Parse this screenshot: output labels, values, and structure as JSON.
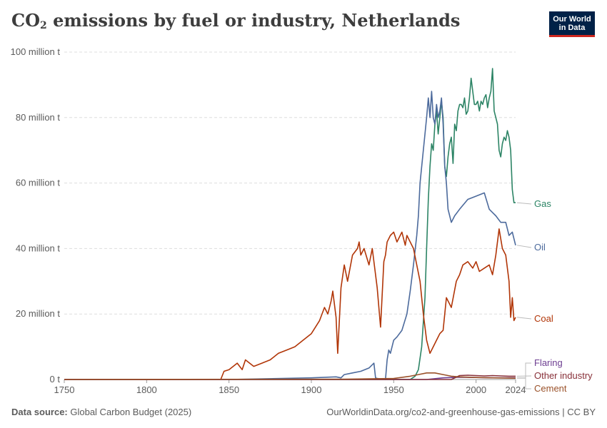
{
  "title": {
    "main": "CO",
    "sub": "2",
    "rest": " emissions by fuel or industry, Netherlands"
  },
  "logo": {
    "line1": "Our World",
    "line2": "in Data"
  },
  "footer": {
    "source_label": "Data source:",
    "source_value": " Global Carbon Budget (2025)",
    "url_license": "OurWorldinData.org/co2-and-greenhouse-gas-emissions | CC BY"
  },
  "chart_data": {
    "type": "line",
    "title": "CO2 emissions by fuel or industry, Netherlands",
    "xlabel": "",
    "ylabel": "",
    "xlim": [
      1750,
      2024
    ],
    "ylim": [
      0,
      100
    ],
    "y_unit": "million t",
    "x_ticks": [
      1750,
      1800,
      1850,
      1900,
      1950,
      2000,
      2024
    ],
    "y_ticks": [
      0,
      20,
      40,
      60,
      80,
      100
    ],
    "y_tick_labels": [
      "0 t",
      "20 million t",
      "40 million t",
      "60 million t",
      "80 million t",
      "100 million t"
    ],
    "grid": true,
    "legend": "inline-right",
    "series": [
      {
        "name": "Gas",
        "color": "#2c8465",
        "x": [
          1750,
          1960,
          1963,
          1965,
          1967,
          1969,
          1970,
          1971,
          1972,
          1973,
          1974,
          1975,
          1976,
          1977,
          1978,
          1979,
          1980,
          1981,
          1982,
          1983,
          1984,
          1985,
          1986,
          1987,
          1988,
          1989,
          1990,
          1991,
          1992,
          1993,
          1994,
          1995,
          1996,
          1997,
          1998,
          1999,
          2000,
          2001,
          2002,
          2003,
          2004,
          2005,
          2006,
          2007,
          2008,
          2009,
          2010,
          2011,
          2012,
          2013,
          2014,
          2015,
          2016,
          2017,
          2018,
          2019,
          2020,
          2021,
          2022,
          2023,
          2024
        ],
        "y": [
          0,
          0,
          1,
          3,
          10,
          25,
          40,
          55,
          65,
          72,
          70,
          78,
          82,
          75,
          80,
          85,
          80,
          65,
          62,
          68,
          72,
          74,
          66,
          78,
          76,
          82,
          84,
          84,
          83,
          86,
          81,
          82,
          86,
          92,
          88,
          84,
          84,
          85,
          82,
          85,
          84,
          86,
          87,
          83,
          86,
          88,
          95,
          82,
          80,
          78,
          70,
          68,
          72,
          74,
          73,
          76,
          74,
          70,
          58,
          54,
          54
        ]
      },
      {
        "name": "Oil",
        "color": "#4c6a9c",
        "x": [
          1750,
          1850,
          1900,
          1915,
          1918,
          1920,
          1925,
          1930,
          1935,
          1938,
          1939,
          1940,
          1944,
          1945,
          1946,
          1947,
          1948,
          1950,
          1952,
          1955,
          1958,
          1960,
          1962,
          1964,
          1965,
          1966,
          1967,
          1968,
          1969,
          1970,
          1971,
          1972,
          1973,
          1974,
          1975,
          1976,
          1977,
          1978,
          1979,
          1980,
          1981,
          1982,
          1983,
          1985,
          1987,
          1990,
          1995,
          2000,
          2005,
          2008,
          2010,
          2012,
          2015,
          2018,
          2020,
          2022,
          2024
        ],
        "y": [
          0,
          0,
          0.5,
          0.8,
          0.5,
          1.5,
          2,
          2.5,
          3.5,
          5,
          0.5,
          0.3,
          0.1,
          0,
          6,
          9,
          8,
          12,
          13,
          15,
          20,
          27,
          35,
          44,
          50,
          60,
          65,
          70,
          75,
          80,
          86,
          80,
          88,
          80,
          78,
          84,
          80,
          82,
          86,
          78,
          65,
          60,
          52,
          48,
          50,
          52,
          55,
          56,
          57,
          52,
          51,
          50,
          48,
          48,
          44,
          45,
          41
        ]
      },
      {
        "name": "Coal",
        "color": "#b13507",
        "x": [
          1750,
          1845,
          1847,
          1850,
          1855,
          1858,
          1860,
          1865,
          1870,
          1875,
          1880,
          1885,
          1890,
          1895,
          1900,
          1905,
          1908,
          1910,
          1912,
          1913,
          1915,
          1916,
          1918,
          1920,
          1922,
          1925,
          1928,
          1929,
          1930,
          1932,
          1935,
          1937,
          1938,
          1940,
          1942,
          1944,
          1945,
          1946,
          1948,
          1950,
          1952,
          1955,
          1957,
          1958,
          1960,
          1962,
          1964,
          1966,
          1968,
          1970,
          1972,
          1974,
          1976,
          1978,
          1980,
          1982,
          1985,
          1988,
          1990,
          1992,
          1995,
          1998,
          2000,
          2002,
          2005,
          2008,
          2010,
          2012,
          2014,
          2016,
          2018,
          2020,
          2021,
          2022,
          2023,
          2024
        ],
        "y": [
          0,
          0,
          2.5,
          3,
          5,
          3,
          6,
          4,
          5,
          6,
          8,
          9,
          10,
          12,
          14,
          18,
          22,
          20,
          24,
          27,
          19,
          8,
          28,
          35,
          30,
          38,
          40,
          42,
          38,
          40,
          35,
          40,
          36,
          28,
          16,
          36,
          38,
          42,
          44,
          45,
          42,
          45,
          41,
          44,
          42,
          40,
          35,
          30,
          20,
          12,
          8,
          10,
          12,
          14,
          15,
          25,
          22,
          30,
          32,
          35,
          36,
          34,
          36,
          33,
          34,
          35,
          32,
          38,
          46,
          40,
          38,
          30,
          19,
          25,
          18,
          19
        ]
      },
      {
        "name": "Flaring",
        "color": "#6d3e91",
        "x": [
          1750,
          1970,
          1980,
          1990,
          2000,
          2010,
          2024
        ],
        "y": [
          0,
          0,
          0.5,
          0.7,
          0.6,
          0.5,
          0.5
        ]
      },
      {
        "name": "Other industry",
        "color": "#883039",
        "x": [
          1750,
          1985,
          1990,
          1995,
          2000,
          2005,
          2010,
          2015,
          2020,
          2024
        ],
        "y": [
          0,
          0,
          1.2,
          1.3,
          1.2,
          1.1,
          1.2,
          1.1,
          1.0,
          1.0
        ]
      },
      {
        "name": "Cement",
        "color": "#9a5129",
        "x": [
          1750,
          1920,
          1950,
          1960,
          1965,
          1970,
          1975,
          1980,
          1985,
          1990,
          2000,
          2010,
          2024
        ],
        "y": [
          0,
          0.1,
          0.3,
          1.0,
          1.5,
          2.0,
          2.0,
          1.5,
          1.0,
          0.8,
          0.6,
          0.5,
          0.4
        ]
      }
    ]
  }
}
